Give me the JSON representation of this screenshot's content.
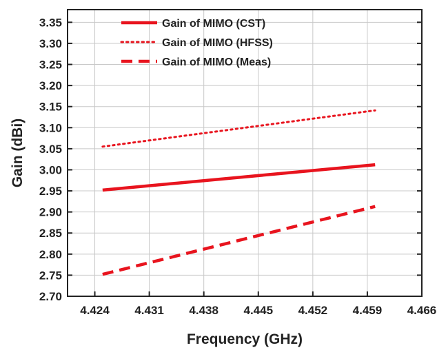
{
  "chart_data": {
    "type": "line",
    "title": "",
    "xlabel": "Frequency (GHz)",
    "ylabel": "Gain (dBi)",
    "xlim": [
      4.4205,
      4.466
    ],
    "ylim": [
      2.7,
      3.38
    ],
    "xticks": [
      "4.424",
      "4.431",
      "4.438",
      "4.445",
      "4.452",
      "4.459",
      "4.466"
    ],
    "yticks": [
      "2.70",
      "2.75",
      "2.80",
      "2.85",
      "2.90",
      "2.95",
      "3.00",
      "3.05",
      "3.10",
      "3.15",
      "3.20",
      "3.25",
      "3.30",
      "3.35"
    ],
    "grid": true,
    "legend_position": "top-left",
    "series": [
      {
        "name": "Gain of MIMO (CST)",
        "style": "solid",
        "color": "#e8141e",
        "x": [
          4.425,
          4.46
        ],
        "y": [
          2.952,
          3.012
        ]
      },
      {
        "name": "Gain of MIMO (HFSS)",
        "style": "dotted",
        "color": "#e8141e",
        "x": [
          4.425,
          4.46
        ],
        "y": [
          3.055,
          3.141
        ]
      },
      {
        "name": "Gain of MIMO (Meas)",
        "style": "dashed",
        "color": "#e8141e",
        "x": [
          4.425,
          4.46
        ],
        "y": [
          2.752,
          2.913
        ]
      }
    ]
  }
}
